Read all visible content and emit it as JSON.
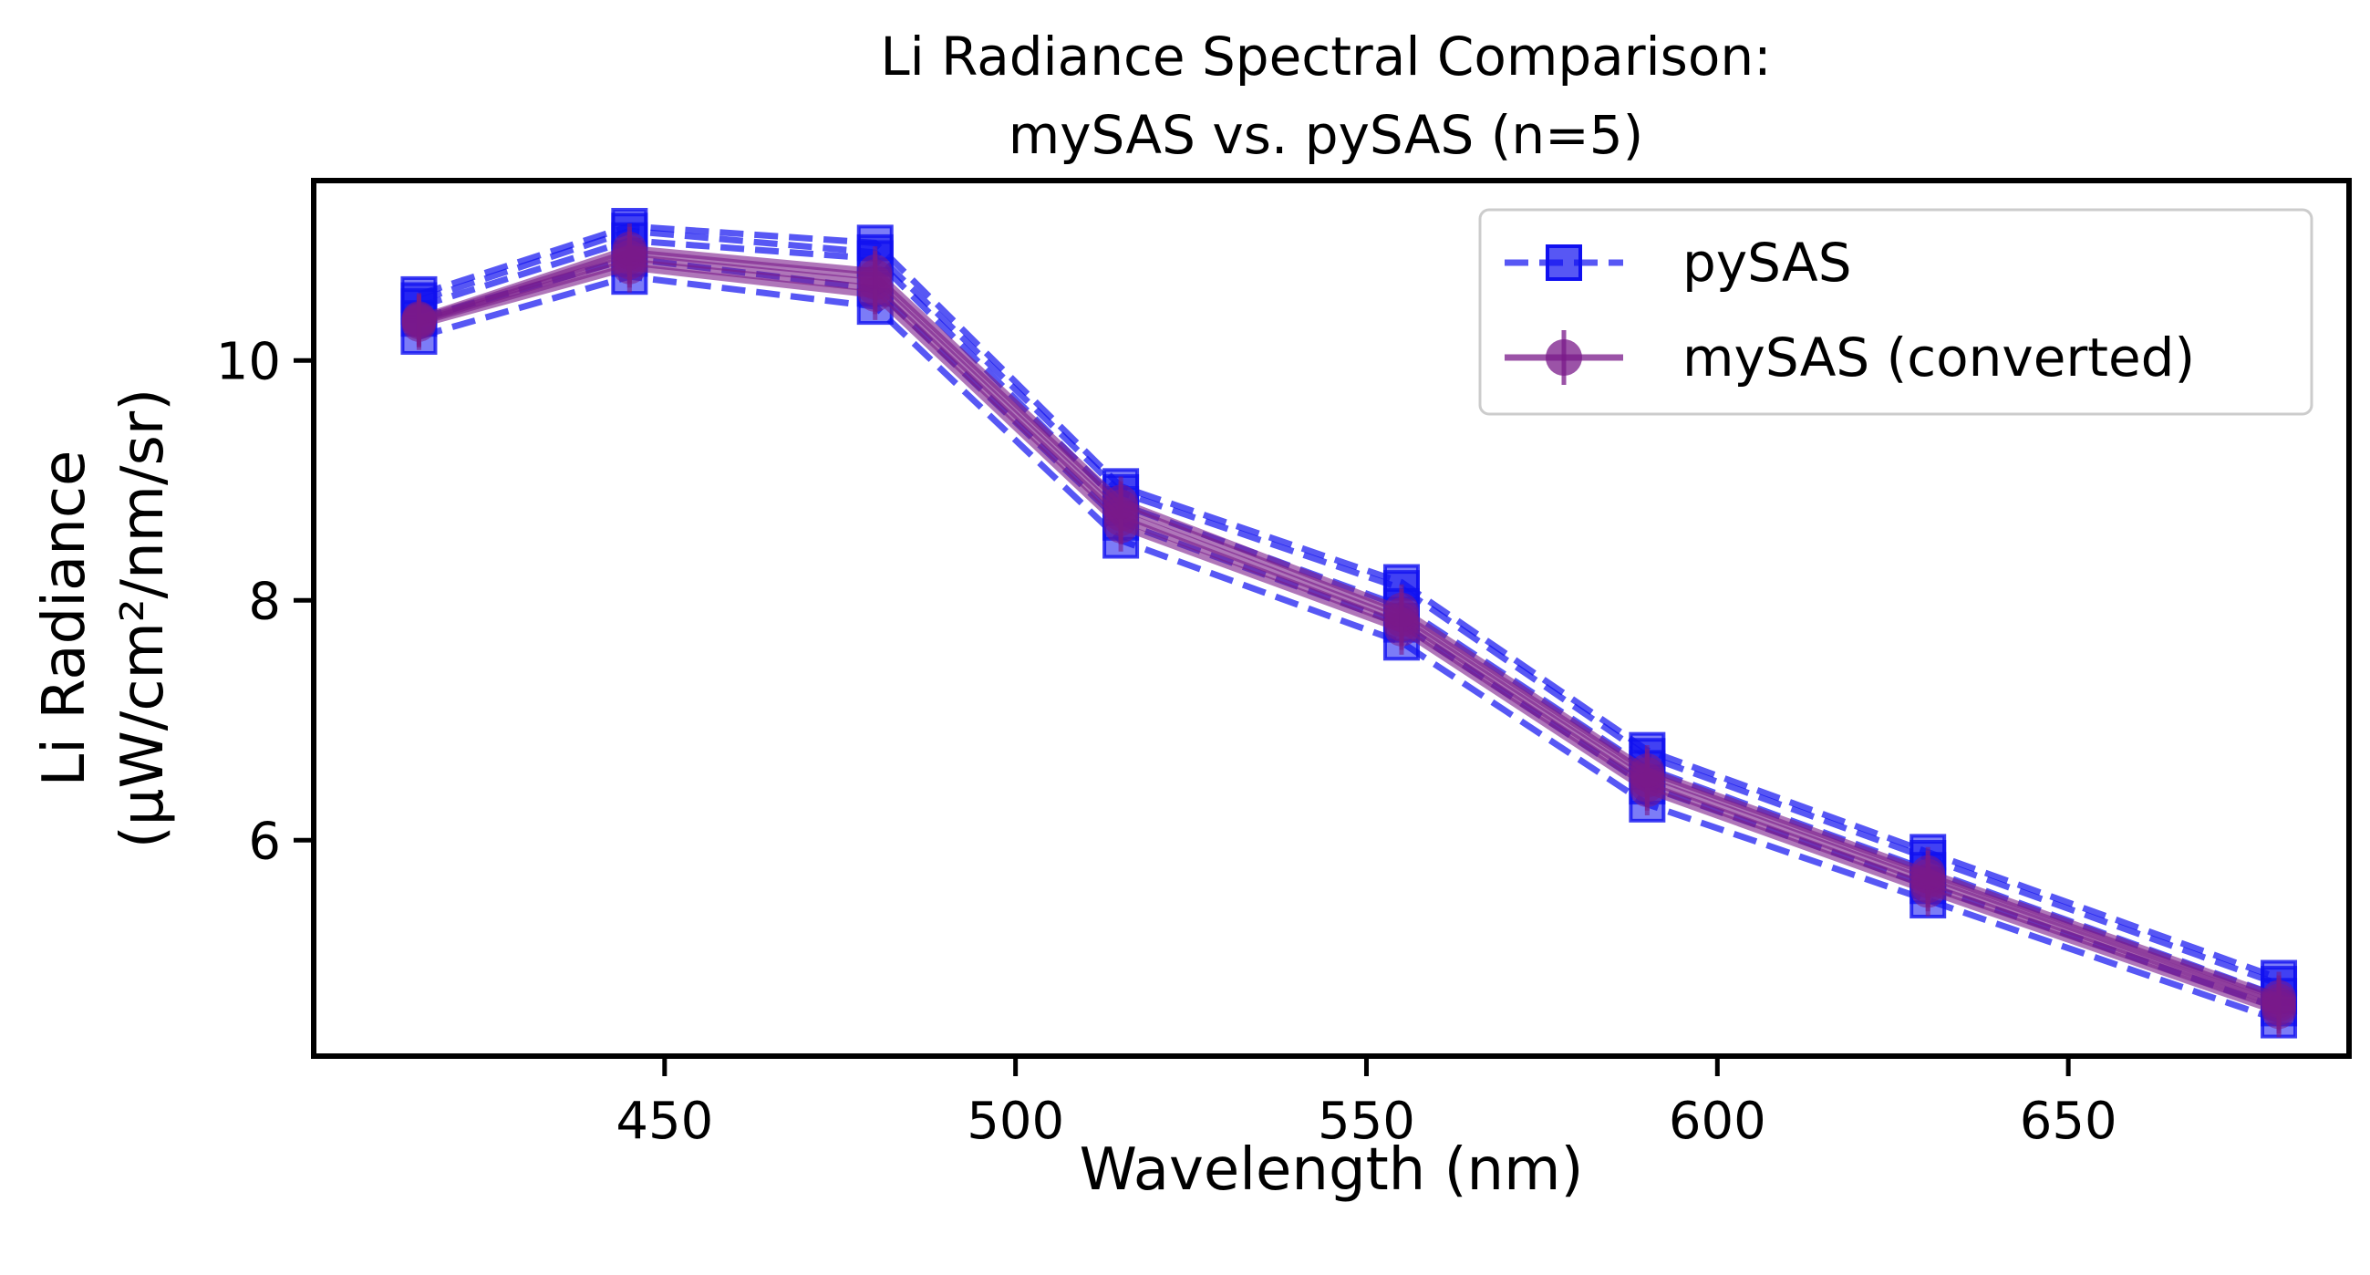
{
  "chart_data": {
    "type": "line",
    "title_line1": "Li Radiance Spectral Comparison:",
    "title_line2": "mySAS vs. pySAS (n=5)",
    "xlabel": "Wavelength (nm)",
    "ylabel_line1": "Li Radiance",
    "ylabel_line2": "(µW/cm²/nm/sr)",
    "xlim": [
      400,
      690
    ],
    "ylim": [
      4.2,
      11.5
    ],
    "xticks": [
      450,
      500,
      550,
      600,
      650
    ],
    "yticks": [
      6,
      8,
      10
    ],
    "x": [
      415,
      445,
      480,
      515,
      555,
      590,
      630,
      680
    ],
    "legend_position": "top-right",
    "grid": false,
    "legend": [
      {
        "label": "pySAS",
        "style": "dashed-square"
      },
      {
        "label": "mySAS (converted)",
        "style": "solid-circle-errorbar"
      }
    ],
    "series": [
      {
        "group": "pySAS",
        "values": [
          10.2,
          10.7,
          10.45,
          8.5,
          7.65,
          6.3,
          5.5,
          4.5
        ]
      },
      {
        "group": "pySAS",
        "values": [
          10.35,
          10.85,
          10.6,
          8.65,
          7.8,
          6.45,
          5.62,
          4.6
        ]
      },
      {
        "group": "pySAS",
        "values": [
          10.45,
          11.0,
          10.85,
          8.8,
          7.95,
          6.6,
          5.75,
          4.7
        ]
      },
      {
        "group": "pySAS",
        "values": [
          10.5,
          11.08,
          10.9,
          8.9,
          8.1,
          6.7,
          5.85,
          4.8
        ]
      },
      {
        "group": "pySAS",
        "values": [
          10.55,
          11.12,
          10.98,
          8.95,
          8.15,
          6.75,
          5.9,
          4.85
        ]
      },
      {
        "group": "mySAS (converted)",
        "values": [
          10.3,
          10.78,
          10.55,
          8.62,
          7.76,
          6.42,
          5.58,
          4.57
        ]
      },
      {
        "group": "mySAS (converted)",
        "values": [
          10.32,
          10.82,
          10.6,
          8.68,
          7.8,
          6.46,
          5.62,
          4.6
        ]
      },
      {
        "group": "mySAS (converted)",
        "values": [
          10.33,
          10.86,
          10.65,
          8.72,
          7.84,
          6.5,
          5.66,
          4.63
        ]
      },
      {
        "group": "mySAS (converted)",
        "values": [
          10.34,
          10.9,
          10.7,
          8.78,
          7.88,
          6.55,
          5.7,
          4.66
        ]
      },
      {
        "group": "mySAS (converted)",
        "values": [
          10.35,
          10.93,
          10.74,
          8.82,
          7.92,
          6.58,
          5.73,
          4.69
        ]
      }
    ],
    "colors": {
      "pySAS": "#1010f0",
      "mySAS": "#7a1a8a"
    }
  }
}
